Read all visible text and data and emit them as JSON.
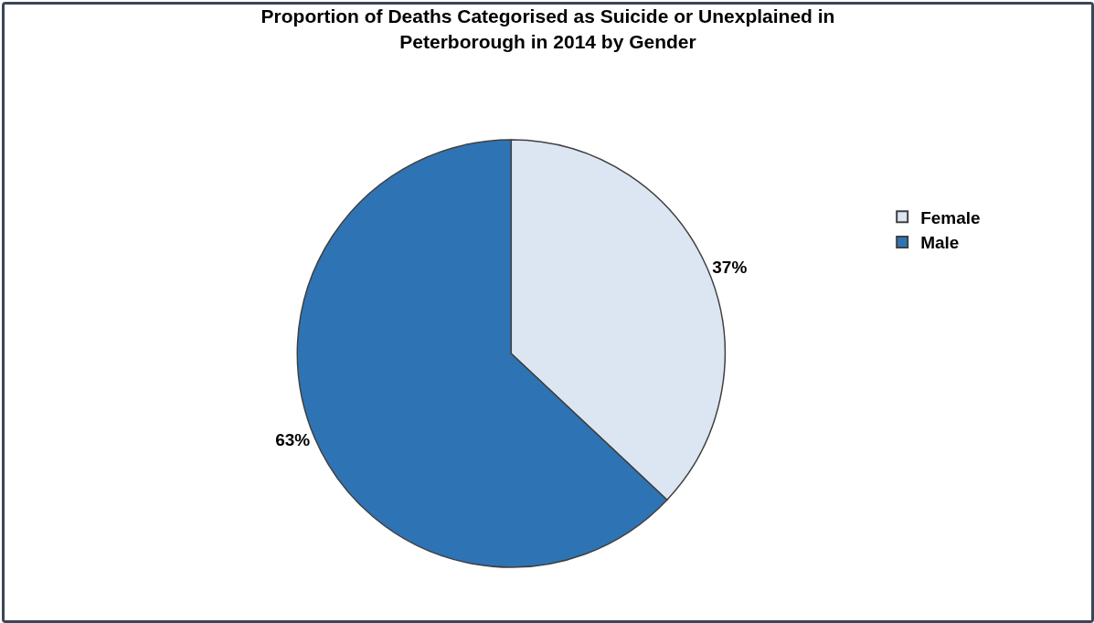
{
  "chart_data": {
    "type": "pie",
    "title": "Proportion of Deaths Categorised as Suicide or Unexplained in\nPeterborough in 2014 by Gender",
    "categories": [
      "Female",
      "Male"
    ],
    "values": [
      37,
      63
    ],
    "colors": [
      "#dce6f2",
      "#2e74b5"
    ],
    "value_labels": [
      "37%",
      "63%"
    ],
    "legend": "top right"
  }
}
